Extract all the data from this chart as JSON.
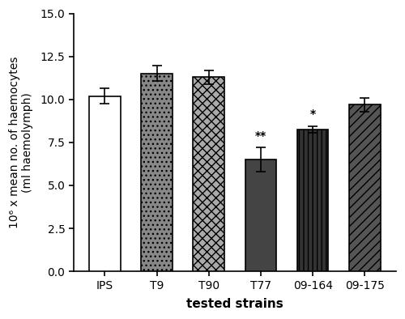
{
  "categories": [
    "IPS",
    "T9",
    "T90",
    "T77",
    "09-164",
    "09-175"
  ],
  "values": [
    10.2,
    11.5,
    11.3,
    6.5,
    8.25,
    9.7
  ],
  "errors": [
    0.45,
    0.45,
    0.4,
    0.7,
    0.2,
    0.4
  ],
  "significance": [
    "",
    "",
    "",
    "**",
    "*",
    ""
  ],
  "ylabel": "10⁶ x mean no. of haemocytes\n(ml haemolymph)",
  "xlabel": "tested strains",
  "ylim": [
    0,
    15.0
  ],
  "yticks": [
    0.0,
    2.5,
    5.0,
    7.5,
    10.0,
    12.5,
    15.0
  ],
  "bar_width": 0.6,
  "background_color": "#ffffff",
  "edge_color": "#000000",
  "hatch_patterns": [
    "",
    "...",
    "xxx",
    "===",
    "|||",
    "///"
  ],
  "bar_face_colors": [
    "#ffffff",
    "#888888",
    "#aaaaaa",
    "#444444",
    "#333333",
    "#555555"
  ],
  "fig_width": 5.0,
  "fig_height": 3.94,
  "dpi": 100
}
